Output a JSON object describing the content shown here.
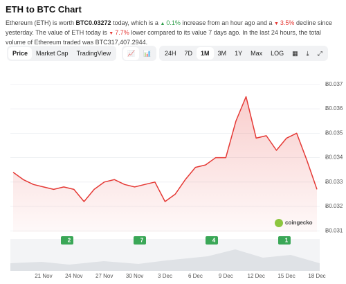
{
  "header": {
    "title": "ETH to BTC Chart",
    "text": [
      "Ethereum (ETH) is worth ",
      "BTC0.03272",
      " today, which is a ",
      "0.1%",
      " increase from an hour ago and a ",
      "3.5%",
      " decline since yesterday. The value of ETH today is ",
      "7.7%",
      " lower compared to its value 7 days ago. In the last 24 hours, the total volume of Ethereum traded was BTC317,407.2944."
    ]
  },
  "tabs": [
    "Price",
    "Market Cap",
    "TradingView"
  ],
  "ranges": [
    "24H",
    "7D",
    "1M",
    "3M",
    "1Y",
    "Max",
    "LOG"
  ],
  "chart_data": {
    "type": "line",
    "categories": [
      null,
      null,
      null,
      "21 Nov",
      null,
      null,
      "24 Nov",
      null,
      null,
      "27 Nov",
      null,
      null,
      "30 Nov",
      null,
      null,
      "3 Dec",
      null,
      null,
      "6 Dec",
      null,
      null,
      "9 Dec",
      null,
      null,
      "12 Dec",
      null,
      null,
      "15 Dec",
      null,
      null,
      "18 Dec"
    ],
    "values": [
      0.0334,
      0.0331,
      0.0329,
      0.0328,
      0.0327,
      0.0328,
      0.0327,
      0.0322,
      0.0327,
      0.033,
      0.0331,
      0.0329,
      0.0328,
      0.0329,
      0.033,
      0.0322,
      0.0325,
      0.0331,
      0.0336,
      0.0337,
      0.034,
      0.034,
      0.0355,
      0.0365,
      0.0348,
      0.0349,
      0.0343,
      0.0348,
      0.035,
      0.0339,
      0.0327
    ],
    "color": "#e53935",
    "ylim": [
      0.03095,
      0.03748
    ],
    "yticks": [
      {
        "value": 0.031,
        "label": "Ƀ0.031"
      },
      {
        "value": 0.032,
        "label": "Ƀ0.032"
      },
      {
        "value": 0.033,
        "label": "Ƀ0.033"
      },
      {
        "value": 0.034,
        "label": "Ƀ0.034"
      },
      {
        "value": 0.035,
        "label": "Ƀ0.035"
      },
      {
        "value": 0.036,
        "label": "Ƀ0.036"
      },
      {
        "value": 0.037,
        "label": "Ƀ0.037"
      }
    ],
    "grid": true,
    "annotations": [
      "2",
      "7",
      "4",
      "1"
    ],
    "watermark": "coingecko"
  }
}
